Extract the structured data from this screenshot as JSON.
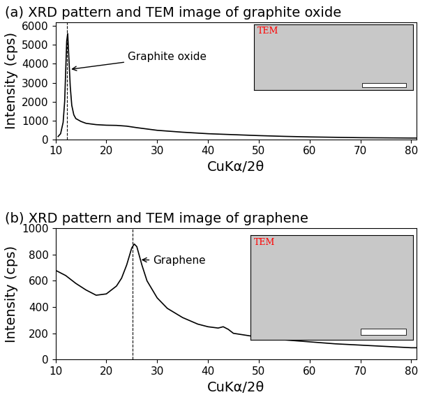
{
  "chart_data": [
    {
      "type": "line",
      "title": "(a) XRD pattern and TEM image of graphite oxide",
      "x_label": "CuKα/2θ",
      "y_label": "Intensity (cps)",
      "x": [
        10.5,
        11,
        11.5,
        11.8,
        12.0,
        12.2,
        12.4,
        12.6,
        12.9,
        13.2,
        13.6,
        14,
        15,
        16,
        18,
        20,
        22,
        24,
        26,
        28,
        30,
        35,
        40,
        45,
        50,
        55,
        60,
        65,
        70,
        75,
        80,
        81
      ],
      "values": [
        150,
        300,
        900,
        2000,
        3600,
        5200,
        5600,
        4500,
        2800,
        1800,
        1300,
        1100,
        950,
        850,
        780,
        750,
        740,
        700,
        620,
        550,
        480,
        380,
        300,
        250,
        200,
        160,
        130,
        110,
        90,
        80,
        70,
        70
      ],
      "color": "#000000",
      "xlim": [
        10,
        81
      ],
      "xticks": [
        10,
        20,
        30,
        40,
        50,
        60,
        70,
        80
      ],
      "ylim": [
        0,
        6200
      ],
      "yticks": [
        0,
        1000,
        2000,
        3000,
        4000,
        5000,
        6000
      ],
      "reference_x": 12.3,
      "annotation": {
        "text": "Graphite oxide",
        "x": 12.7,
        "y": 3700
      },
      "inset_label": "TEM"
    },
    {
      "type": "line",
      "title": "(b) XRD pattern and TEM image of graphene",
      "x_label": "CuKα/2θ",
      "y_label": "Intensity (cps)",
      "x": [
        10,
        12,
        14,
        16,
        18,
        20,
        22,
        23,
        24,
        25,
        25.5,
        26,
        27,
        28,
        30,
        32,
        35,
        38,
        40,
        42,
        43,
        44,
        45,
        50,
        55,
        60,
        65,
        70,
        75,
        80,
        81
      ],
      "values": [
        680,
        640,
        580,
        530,
        490,
        500,
        560,
        620,
        720,
        850,
        880,
        860,
        720,
        600,
        470,
        390,
        320,
        270,
        250,
        240,
        250,
        230,
        200,
        170,
        150,
        135,
        120,
        110,
        100,
        90,
        90
      ],
      "color": "#000000",
      "xlim": [
        10,
        81
      ],
      "xticks": [
        10,
        20,
        30,
        40,
        50,
        60,
        70,
        80
      ],
      "ylim": [
        0,
        1000
      ],
      "yticks": [
        0,
        200,
        400,
        600,
        800,
        1000
      ],
      "reference_x": 25.2,
      "annotation": {
        "text": "Graphene",
        "x": 26.5,
        "y": 760
      },
      "inset_label": "TEM"
    }
  ]
}
